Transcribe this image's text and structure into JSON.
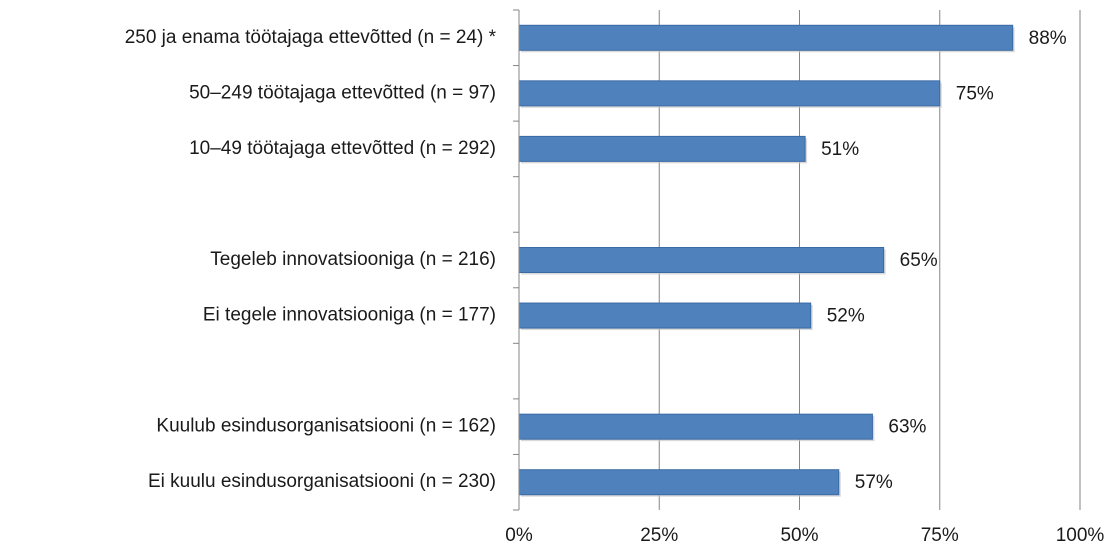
{
  "chart_data": {
    "type": "bar",
    "orientation": "horizontal",
    "categories": [
      "250 ja enama töötajaga ettevõtted (n = 24) *",
      "50–249 töötajaga ettevõtted (n = 97)",
      "10–49 töötajaga ettevõtted (n = 292)",
      "",
      "Tegeleb innovatsiooniga (n = 216)",
      "Ei tegele innovatsiooniga (n = 177)",
      "",
      "Kuulub esindusorganisatsiooni (n = 162)",
      "Ei kuulu esindusorganisatsiooni (n = 230)"
    ],
    "values": [
      88,
      75,
      51,
      null,
      65,
      52,
      null,
      63,
      57
    ],
    "value_labels": [
      "88%",
      "75%",
      "51%",
      "",
      "65%",
      "52%",
      "",
      "63%",
      "57%"
    ],
    "xlim": [
      0,
      100
    ],
    "xticks": [
      0,
      25,
      50,
      75,
      100
    ],
    "xtick_labels": [
      "0%",
      "25%",
      "50%",
      "75%",
      "100%"
    ],
    "grid": "vertical",
    "legend": "none",
    "colors": {
      "bar": "#4f81bd",
      "bar_stroke": "#3a6aa6",
      "grid": "#868686",
      "axis": "#868686"
    }
  }
}
